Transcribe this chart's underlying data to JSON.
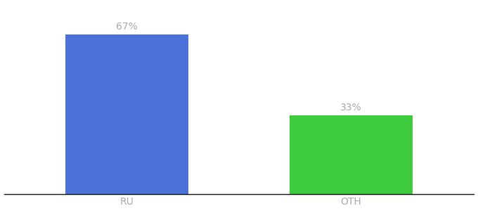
{
  "categories": [
    "RU",
    "OTH"
  ],
  "values": [
    67,
    33
  ],
  "bar_colors": [
    "#4a72d9",
    "#3ecb3e"
  ],
  "label_texts": [
    "67%",
    "33%"
  ],
  "label_color": "#aaaaaa",
  "ylim": [
    0,
    80
  ],
  "background_color": "#ffffff",
  "tick_label_fontsize": 10,
  "bar_label_fontsize": 10,
  "bar_width": 0.55,
  "spine_color": "#111111"
}
